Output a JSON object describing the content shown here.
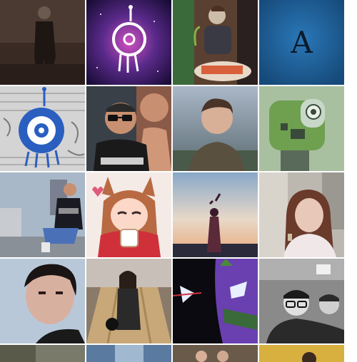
{
  "grid": {
    "columns": 4,
    "visible_rows": 5,
    "tiles": [
      {
        "name": "avatar-dark-figure",
        "colors": {
          "bg": "#3a2a24",
          "fg": "#6b5a50"
        }
      },
      {
        "name": "avatar-eye-creature-space",
        "colors": {
          "bg": "#2a1a4a",
          "accent": "#d050c0",
          "fg": "#ffffff"
        }
      },
      {
        "name": "avatar-man-with-sushi",
        "colors": {
          "bg": "#5a4030",
          "fg": "#cdbca8"
        }
      },
      {
        "name": "avatar-letter-a",
        "letter": "A",
        "colors": {
          "bg": "#1e5e96",
          "fg": "#0b1a2a"
        }
      },
      {
        "name": "avatar-blue-eye-sketch",
        "colors": {
          "bg": "#cfcfcf",
          "accent": "#2a5fc0",
          "fg": "#ffffff"
        }
      },
      {
        "name": "avatar-two-men-glasses",
        "colors": {
          "bg": "#3a4048",
          "fg": "#c89070"
        }
      },
      {
        "name": "avatar-young-man-portrait",
        "colors": {
          "bg": "#7a90a8",
          "fg": "#d8b098"
        }
      },
      {
        "name": "avatar-green-robot",
        "colors": {
          "bg": "#a8c0a0",
          "accent": "#6ea050",
          "fg": "#3a4a3a"
        }
      },
      {
        "name": "avatar-man-sitting-city",
        "colors": {
          "bg": "#98a8b8",
          "fg": "#2a2a32"
        }
      },
      {
        "name": "avatar-anime-fox-girl",
        "colors": {
          "bg": "#f4eae6",
          "accent": "#b86a42",
          "fg": "#fbd8c8"
        }
      },
      {
        "name": "avatar-woman-silhouette-sunset",
        "colors": {
          "bg": "#e8c8a0",
          "accent": "#5a2a3a",
          "fg": "#88a8c8"
        }
      },
      {
        "name": "avatar-woman-smiling",
        "colors": {
          "bg": "#bcb8b0",
          "accent": "#6a3a2a",
          "fg": "#e8c8b8"
        }
      },
      {
        "name": "avatar-man-face-closeup",
        "colors": {
          "bg": "#b8c8d8",
          "fg": "#d8b0a0"
        }
      },
      {
        "name": "avatar-woman-bowling",
        "colors": {
          "bg": "#c8a878",
          "accent": "#2a2a2a",
          "fg": "#e0c0a8"
        }
      },
      {
        "name": "avatar-evangelion-unit",
        "colors": {
          "bg": "#0a0a10",
          "accent": "#6a40b0",
          "fg": "#e8f0ff"
        }
      },
      {
        "name": "avatar-two-men-grayscale",
        "colors": {
          "bg": "#8a8a8a",
          "fg": "#e0e0e0"
        }
      },
      {
        "name": "avatar-row5-col1",
        "colors": {
          "bg": "#7a7a6a"
        }
      },
      {
        "name": "avatar-row5-col2",
        "colors": {
          "bg": "#5a7aa0"
        }
      },
      {
        "name": "avatar-row5-col3",
        "colors": {
          "bg": "#6a5a4a"
        }
      },
      {
        "name": "avatar-row5-col4",
        "colors": {
          "bg": "#d8b040"
        }
      }
    ]
  }
}
